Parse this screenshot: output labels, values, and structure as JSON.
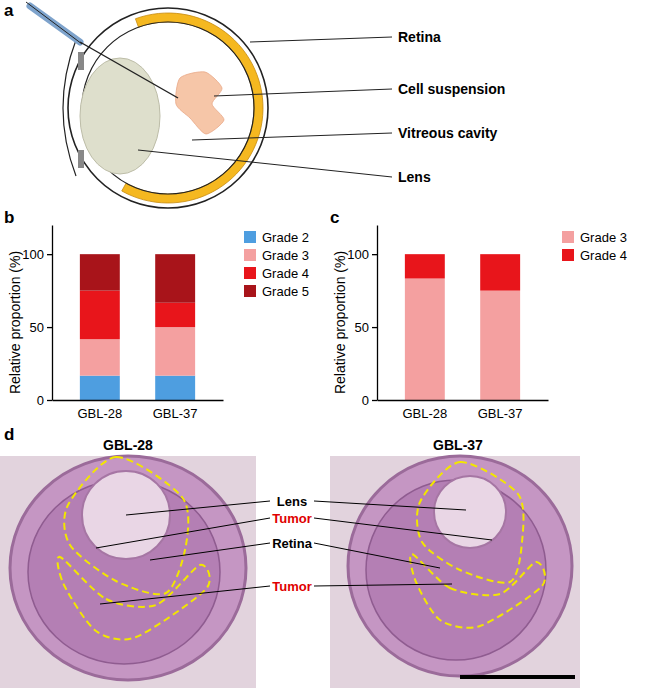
{
  "diagram": {
    "panel": "a",
    "labels": [
      "Retina",
      "Cell suspension",
      "Vitreous cavity",
      "Lens"
    ]
  },
  "chart_data": [
    {
      "type": "bar",
      "stacked": true,
      "panel": "b",
      "categories": [
        "GBL-28",
        "GBL-37"
      ],
      "y_label": "Relative proportion (%)",
      "ylim": [
        0,
        120
      ],
      "yticks": [
        0,
        50,
        100
      ],
      "legend": "right",
      "series": [
        {
          "name": "Grade 2",
          "color": "#4e9ee0",
          "values": [
            16.7,
            16.7
          ]
        },
        {
          "name": "Grade 3",
          "color": "#f4a0a0",
          "values": [
            25,
            33.3
          ]
        },
        {
          "name": "Grade 4",
          "color": "#e8151b",
          "values": [
            33.3,
            16.7
          ]
        },
        {
          "name": "Grade 5",
          "color": "#a8141a",
          "values": [
            25,
            33.3
          ]
        }
      ]
    },
    {
      "type": "bar",
      "stacked": true,
      "panel": "c",
      "categories": [
        "GBL-28",
        "GBL-37"
      ],
      "y_label": "Relative proportion (%)",
      "ylim": [
        0,
        120
      ],
      "yticks": [
        0,
        50,
        100
      ],
      "legend": "right",
      "series": [
        {
          "name": "Grade 3",
          "color": "#f4a0a0",
          "values": [
            83.3,
            75
          ]
        },
        {
          "name": "Grade 4",
          "color": "#e8151b",
          "values": [
            16.7,
            25
          ]
        }
      ]
    }
  ],
  "histology": {
    "panel": "d",
    "images": [
      "GBL-28",
      "GBL-37"
    ],
    "labels": [
      {
        "text": "Lens",
        "color": "#000000"
      },
      {
        "text": "Tumor",
        "color": "#e00000"
      },
      {
        "text": "Retina",
        "color": "#000000"
      },
      {
        "text": "Tumor",
        "color": "#e00000"
      }
    ]
  }
}
